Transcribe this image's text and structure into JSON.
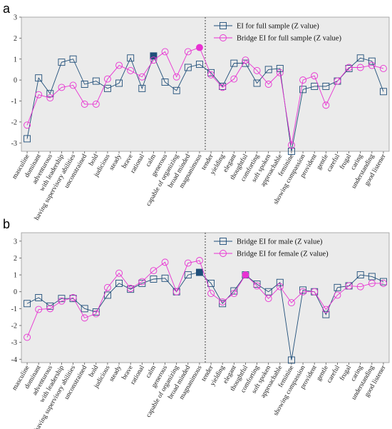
{
  "chart_data": [
    {
      "panel": "a",
      "type": "line",
      "categories": [
        "masculine",
        "dominant",
        "adventurous",
        "with leadership",
        "having supervisory abilities",
        "unconstrained",
        "bold",
        "judicious",
        "steady",
        "brave",
        "rational",
        "calm",
        "generous",
        "capable of organizing",
        "broad minded",
        "magnanimous",
        "tender",
        "yielding",
        "elegant",
        "thoughtful",
        "comforting",
        "soft spoken",
        "approachable",
        "feminine",
        "showing compassion",
        "provident",
        "gentle",
        "careful",
        "frugal",
        "caring",
        "understanding",
        "good listener"
      ],
      "ylim": [
        -3.4,
        3.0
      ],
      "yticks": [
        -3,
        -2,
        -1,
        0,
        1,
        2,
        3
      ],
      "grid": false,
      "legend_position": "top-right",
      "divider_after": "magnanimous",
      "series": [
        {
          "name": "EI for full sample (Z value)",
          "color": "#1f4e79",
          "marker": "square",
          "values": [
            -2.8,
            0.1,
            -0.65,
            0.85,
            1.0,
            -0.2,
            -0.05,
            -0.4,
            -0.15,
            1.05,
            -0.4,
            1.15,
            -0.1,
            -0.5,
            0.6,
            0.75,
            0.35,
            -0.3,
            0.8,
            0.8,
            -0.15,
            0.5,
            0.55,
            -3.4,
            -0.45,
            -0.3,
            -0.3,
            -0.05,
            0.55,
            1.05,
            0.9,
            -0.55
          ],
          "highlight_index": 11
        },
        {
          "name": "Bridge EI for full sample (Z value)",
          "color": "#e832d2",
          "marker": "circle",
          "values": [
            -2.15,
            -0.7,
            -0.85,
            -0.35,
            -0.25,
            -1.15,
            -1.15,
            0.05,
            0.7,
            0.45,
            0.15,
            0.95,
            1.35,
            0.15,
            1.35,
            1.55,
            0.25,
            -0.35,
            0.05,
            0.95,
            0.45,
            -0.2,
            0.35,
            -3.1,
            0.0,
            0.2,
            -1.2,
            -0.05,
            0.6,
            0.6,
            0.7,
            0.55
          ],
          "highlight_index": 15
        }
      ]
    },
    {
      "panel": "b",
      "type": "line",
      "categories": [
        "masculine",
        "dominant",
        "adventurous",
        "with leadership",
        "having supervisory abilities",
        "unconstrained",
        "bold",
        "judicious",
        "steady",
        "brave",
        "rational",
        "calm",
        "generous",
        "capable of organizing",
        "broad minded",
        "magnanimous",
        "tender",
        "yielding",
        "elegant",
        "thoughtful",
        "comforting",
        "soft spoken",
        "approachable",
        "feminine",
        "showing compassion",
        "provident",
        "gentle",
        "careful",
        "frugal",
        "caring",
        "understanding",
        "good listener"
      ],
      "ylim": [
        -4.2,
        3.5
      ],
      "yticks": [
        -4,
        -3,
        -2,
        -1,
        0,
        1,
        2,
        3
      ],
      "grid": false,
      "legend_position": "top-right",
      "divider_after": "magnanimous",
      "series": [
        {
          "name": "Bridge EI for male (Z value)",
          "color": "#1f4e79",
          "marker": "square",
          "values": [
            -0.7,
            -0.35,
            -0.85,
            -0.4,
            -0.4,
            -1.0,
            -1.2,
            -0.2,
            0.5,
            0.15,
            0.5,
            0.75,
            0.8,
            0.0,
            1.0,
            1.15,
            0.5,
            -0.7,
            0.05,
            1.0,
            0.45,
            0.0,
            0.55,
            -4.05,
            0.1,
            0.0,
            -1.35,
            0.25,
            0.35,
            1.0,
            0.9,
            0.6
          ],
          "highlight_index": 15
        },
        {
          "name": "Bridge EI for female (Z value)",
          "color": "#e832d2",
          "marker": "circle",
          "values": [
            -2.7,
            -1.05,
            -1.0,
            -0.55,
            -0.35,
            -1.55,
            -1.3,
            0.25,
            1.1,
            0.2,
            0.6,
            1.25,
            1.75,
            0.0,
            1.7,
            1.85,
            -0.1,
            -0.6,
            -0.1,
            1.0,
            0.35,
            -0.4,
            0.3,
            -0.65,
            0.0,
            0.0,
            -1.05,
            -0.2,
            0.35,
            0.3,
            0.5,
            0.5
          ],
          "highlight_index": 19
        }
      ]
    }
  ]
}
